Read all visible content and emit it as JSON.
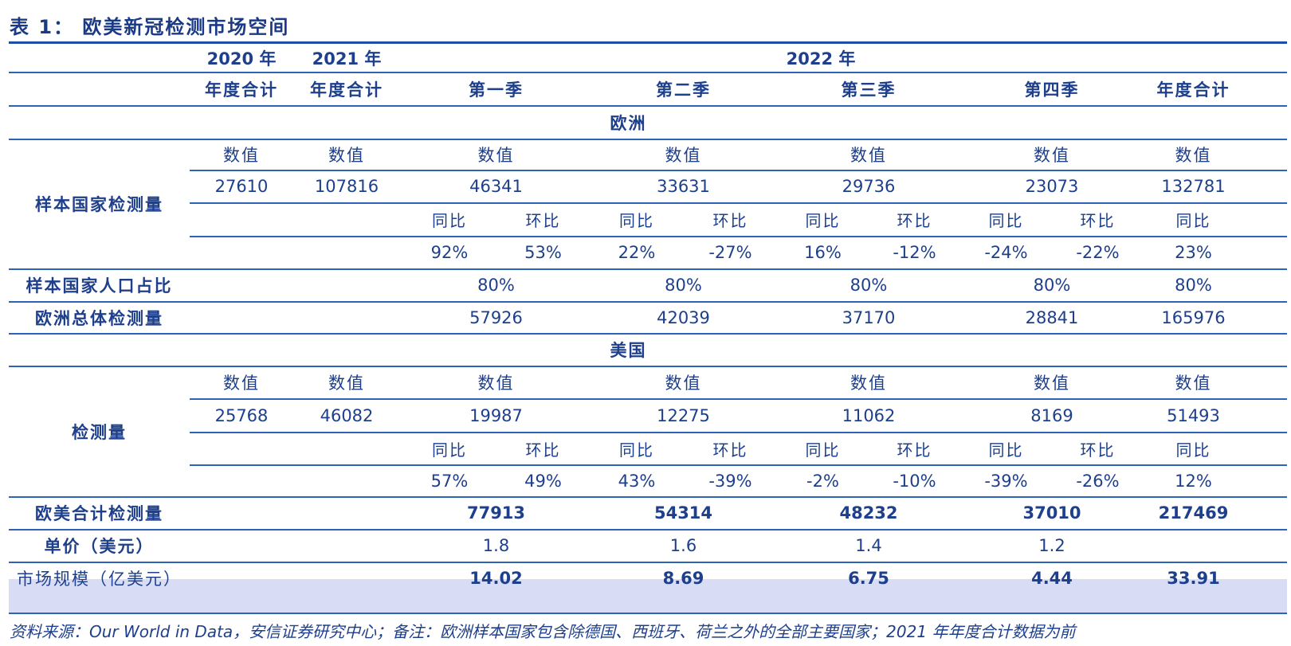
{
  "title": "表 1： 欧美新冠检测市场空间",
  "header": {
    "year_2020": "2020 年",
    "year_2021": "2021 年",
    "year_2022": "2022 年",
    "annual_total": "年度合计",
    "q1": "第一季",
    "q2": "第二季",
    "q3": "第三季",
    "q4": "第四季"
  },
  "europe": {
    "section_label": "欧洲",
    "sample_tests_label": "样本国家检测量",
    "value_label": "数值",
    "yoy_label": "同比",
    "qoq_label": "环比",
    "values": {
      "y2020": "27610",
      "y2021": "107816",
      "q1": "46341",
      "q2": "33631",
      "q3": "29736",
      "q4": "23073",
      "y2022": "132781"
    },
    "changes": {
      "q1_yoy": "92%",
      "q1_qoq": "53%",
      "q2_yoy": "22%",
      "q2_qoq": "-27%",
      "q3_yoy": "16%",
      "q3_qoq": "-12%",
      "q4_yoy": "-24%",
      "q4_qoq": "-22%",
      "y2022_yoy": "23%"
    },
    "population_share_label": "样本国家人口占比",
    "population_share": {
      "q1": "80%",
      "q2": "80%",
      "q3": "80%",
      "q4": "80%",
      "y2022": "80%"
    },
    "total_tests_label": "欧洲总体检测量",
    "total_tests": {
      "q1": "57926",
      "q2": "42039",
      "q3": "37170",
      "q4": "28841",
      "y2022": "165976"
    }
  },
  "usa": {
    "section_label": "美国",
    "tests_label": "检测量",
    "values": {
      "y2020": "25768",
      "y2021": "46082",
      "q1": "19987",
      "q2": "12275",
      "q3": "11062",
      "q4": "8169",
      "y2022": "51493"
    },
    "changes": {
      "q1_yoy": "57%",
      "q1_qoq": "49%",
      "q2_yoy": "43%",
      "q2_qoq": "-39%",
      "q3_yoy": "-2%",
      "q3_qoq": "-10%",
      "q4_yoy": "-39%",
      "q4_qoq": "-26%",
      "y2022_yoy": "12%"
    }
  },
  "combined": {
    "label": "欧美合计检测量",
    "values": {
      "q1": "77913",
      "q2": "54314",
      "q3": "48232",
      "q4": "37010",
      "y2022": "217469"
    }
  },
  "unit_price": {
    "label": "单价（美元）",
    "values": {
      "q1": "1.8",
      "q2": "1.6",
      "q3": "1.4",
      "q4": "1.2"
    }
  },
  "market_size": {
    "label": "市场规模（亿美元）",
    "values": {
      "q1": "14.02",
      "q2": "8.69",
      "q3": "6.75",
      "q4": "4.44",
      "y2022": "33.91"
    }
  },
  "footnote": "资料来源：Our World in Data，安信证券研究中心；备注：欧洲样本国家包含除德国、西班牙、荷兰之外的全部主要国家；2021 年年度合计数据为前"
}
